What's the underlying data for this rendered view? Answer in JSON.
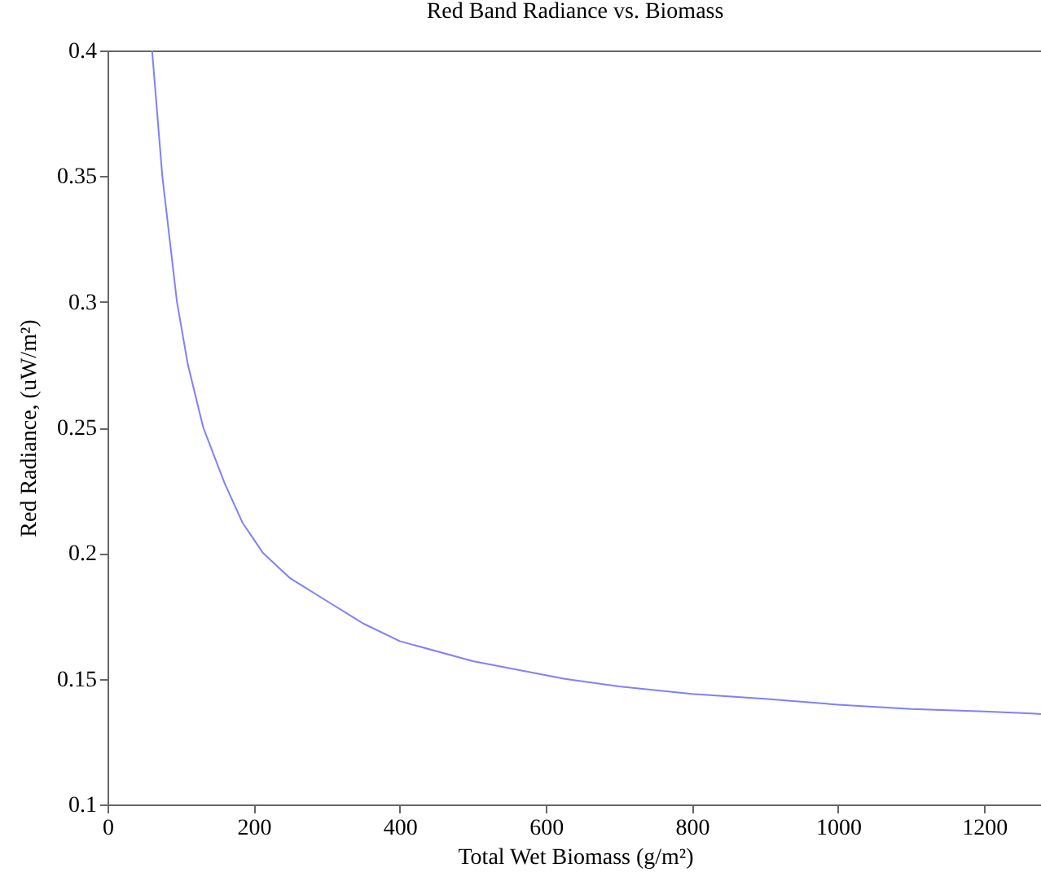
{
  "chart_data": {
    "type": "line",
    "title": "Red Band Radiance vs. Biomass",
    "xlabel": "Total Wet Biomass (g/m²)",
    "ylabel": "Red Radiance, (uW/m²)",
    "x": [
      61,
      75,
      95,
      110,
      131,
      160,
      185,
      213,
      250,
      300,
      350,
      400,
      500,
      626,
      700,
      800,
      900,
      1000,
      1100,
      1200,
      1280
    ],
    "series": [
      {
        "color": "#7f7fff",
        "values": [
          0.4,
          0.35,
          0.3,
          0.275,
          0.25,
          0.228,
          0.212,
          0.2,
          0.19,
          0.181,
          0.172,
          0.165,
          0.157,
          0.15,
          0.147,
          0.144,
          0.142,
          0.1397,
          0.138,
          0.137,
          0.136
        ]
      }
    ],
    "xlim": [
      0,
      1280
    ],
    "xticks": [
      0,
      200,
      400,
      600,
      800,
      1000,
      1200
    ],
    "ylim": [
      0.1,
      0.4
    ],
    "yticks": [
      0.1,
      0.15,
      0.2,
      0.25,
      0.3,
      0.35,
      0.4
    ],
    "grid": false,
    "legend": false,
    "marker": "none",
    "line_style": "solid"
  }
}
